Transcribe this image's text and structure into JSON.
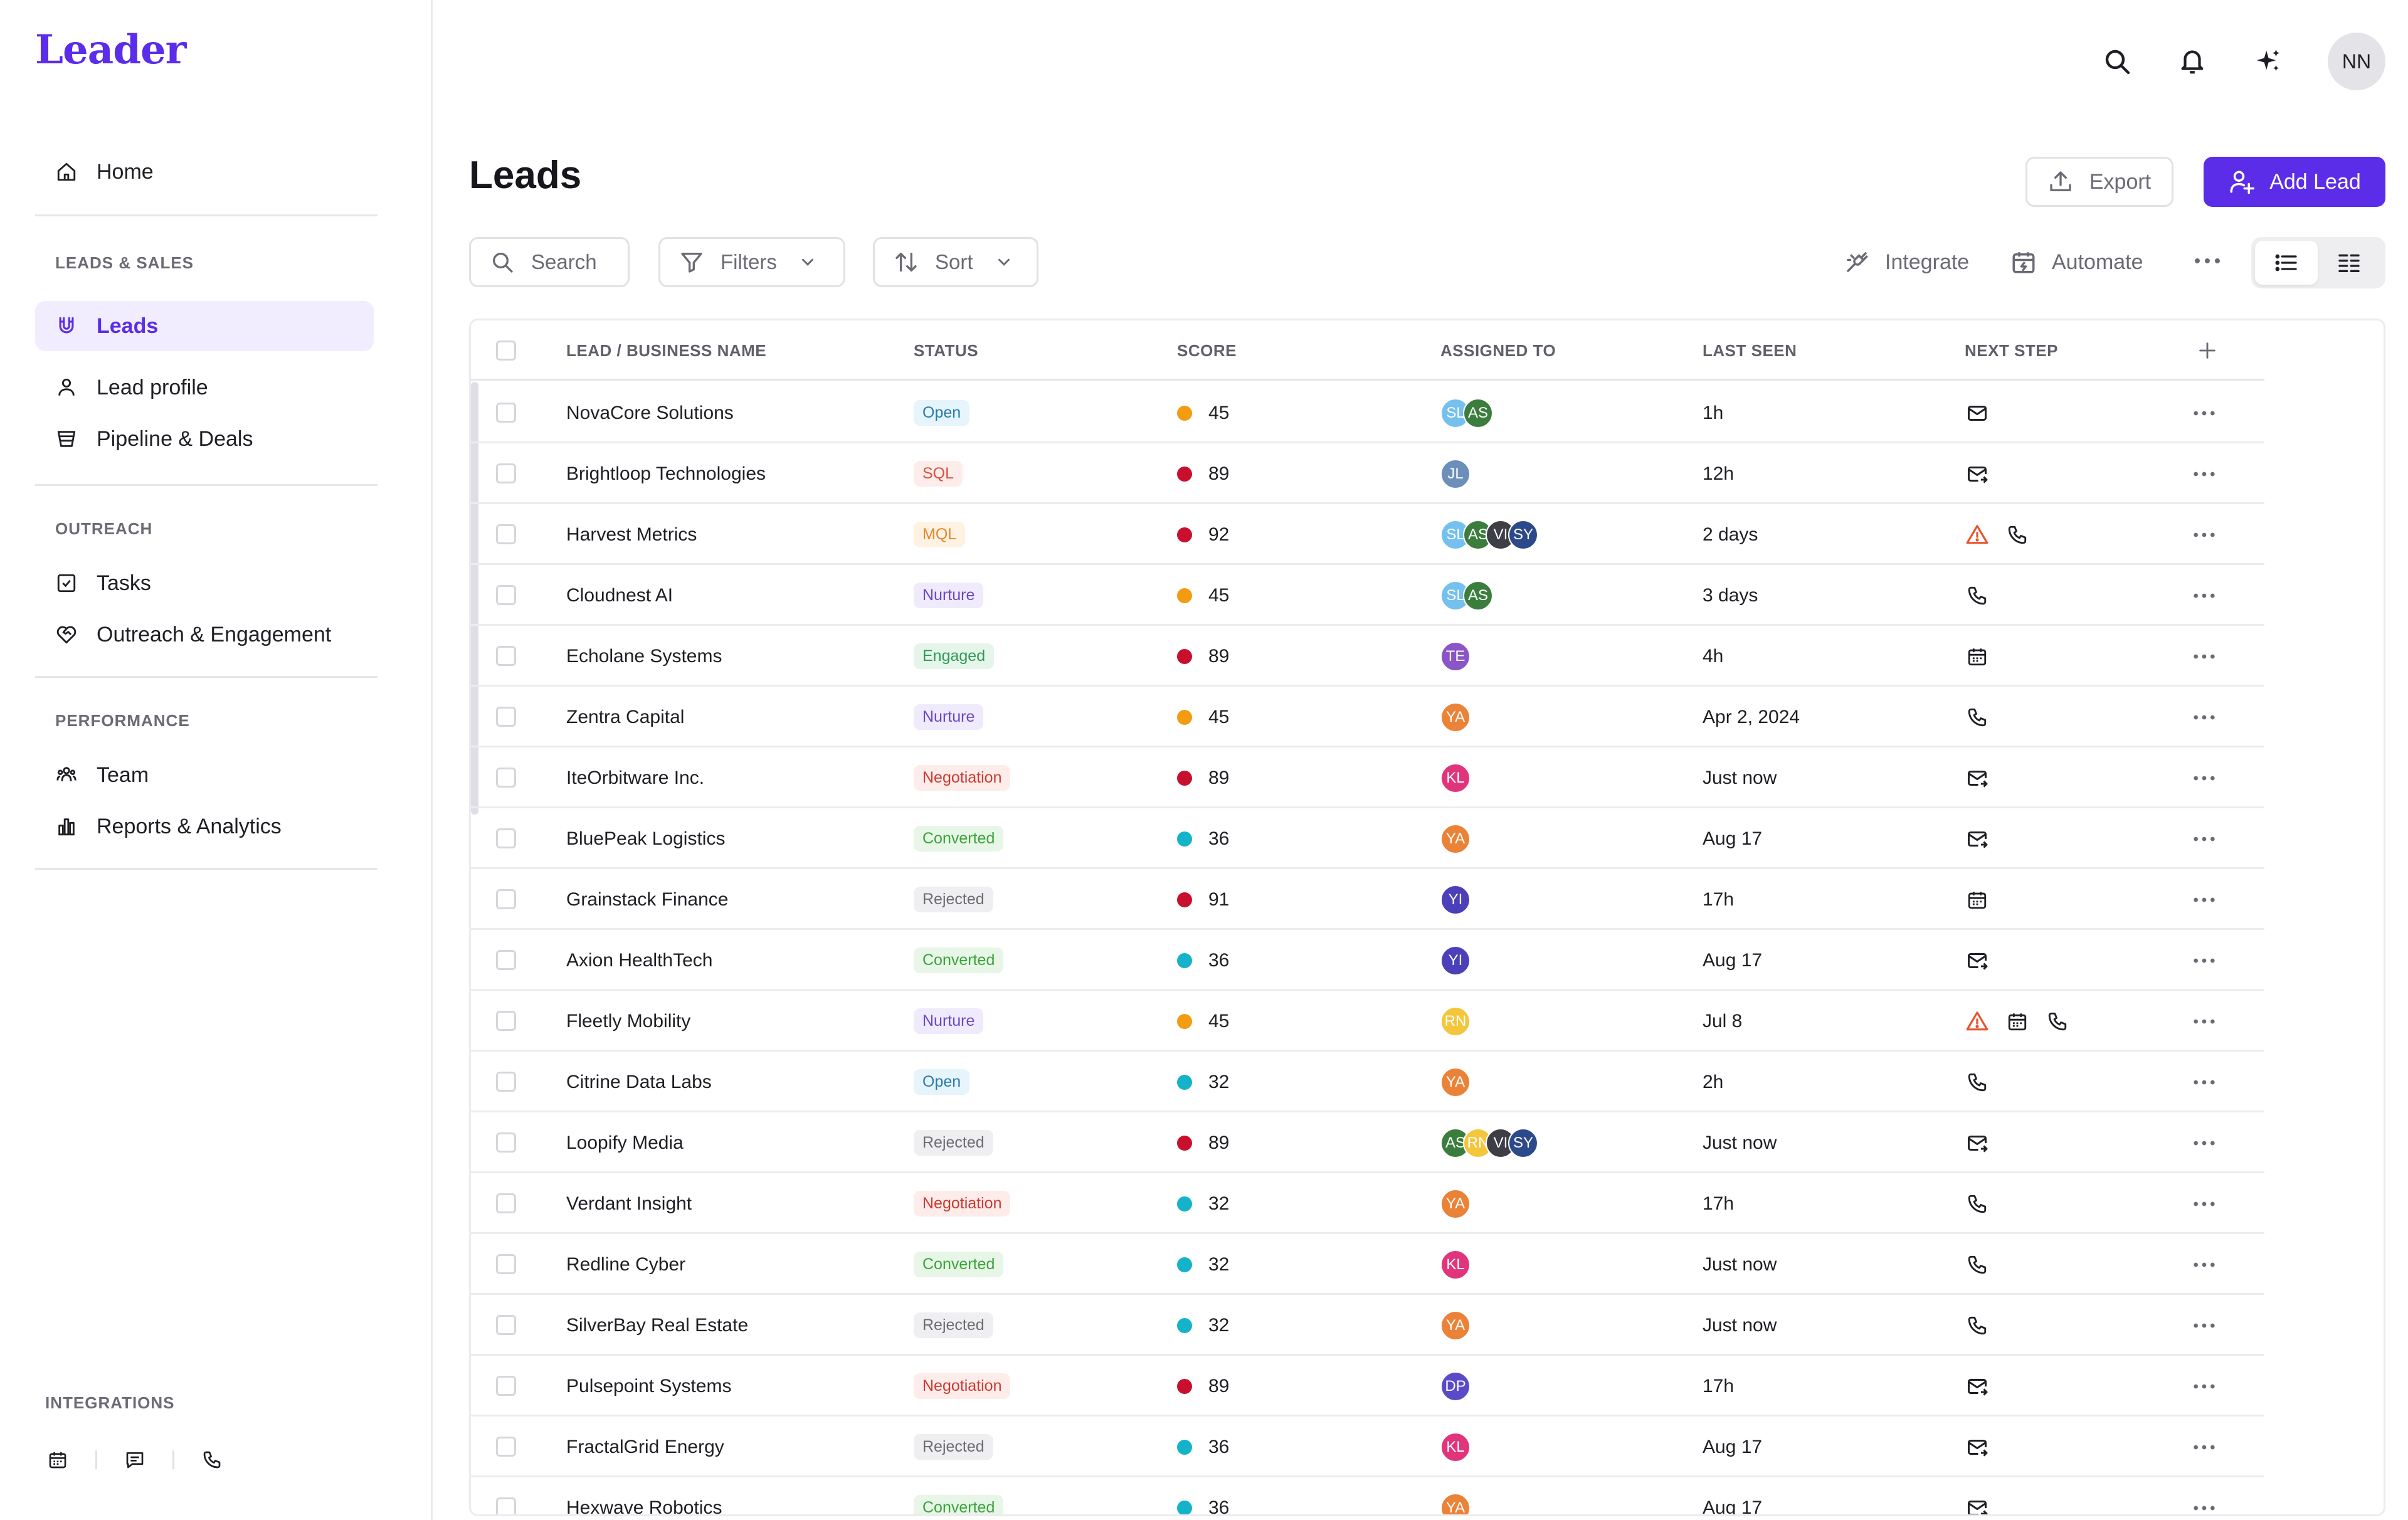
{
  "app": {
    "logo": "Leader"
  },
  "sidebar": {
    "home": "Home",
    "sections": [
      {
        "label": "LEADS & SALES",
        "items": [
          "Leads",
          "Lead profile",
          "Pipeline & Deals"
        ]
      },
      {
        "label": "OUTREACH",
        "items": [
          "Tasks",
          "Outreach & Engagement"
        ]
      },
      {
        "label": "PERFORMANCE",
        "items": [
          "Team",
          "Reports & Analytics"
        ]
      }
    ],
    "active_item": "Leads",
    "integrations_label": "INTEGRATIONS",
    "integration_icons": [
      "calendar-icon",
      "chat-icon",
      "phone-icon"
    ]
  },
  "header": {
    "icons": [
      "search-icon",
      "bell-icon",
      "sparkle-icon"
    ],
    "user_initials": "NN"
  },
  "page": {
    "title": "Leads",
    "export_label": "Export",
    "add_label": "Add Lead"
  },
  "toolbar": {
    "search_placeholder": "Search",
    "filters_label": "Filters",
    "sort_label": "Sort",
    "integrate_label": "Integrate",
    "automate_label": "Automate",
    "view_mode": "list"
  },
  "table": {
    "columns": [
      "LEAD / BUSINESS NAME",
      "STATUS",
      "SCORE",
      "ASSIGNED TO",
      "LAST SEEN",
      "NEXT STEP"
    ],
    "rows": [
      {
        "name": "NovaCore Solutions",
        "status": "Open",
        "score": "45",
        "assigned": [
          "SL",
          "AS"
        ],
        "last_seen": "1h",
        "next": [
          "mail"
        ]
      },
      {
        "name": "Brightloop Technologies",
        "status": "SQL",
        "score": "89",
        "assigned": [
          "JL"
        ],
        "last_seen": "12h",
        "next": [
          "mail-send"
        ]
      },
      {
        "name": "Harvest Metrics",
        "status": "MQL",
        "score": "92",
        "assigned": [
          "SL",
          "AS",
          "VI",
          "SY"
        ],
        "last_seen": "2 days",
        "next": [
          "alert",
          "phone"
        ]
      },
      {
        "name": "Cloudnest AI",
        "status": "Nurture",
        "score": "45",
        "assigned": [
          "SL",
          "AS"
        ],
        "last_seen": "3 days",
        "next": [
          "phone"
        ]
      },
      {
        "name": "Echolane Systems",
        "status": "Engaged",
        "score": "89",
        "assigned": [
          "TE"
        ],
        "last_seen": "4h",
        "next": [
          "calendar"
        ]
      },
      {
        "name": "Zentra Capital",
        "status": "Nurture",
        "score": "45",
        "assigned": [
          "YA"
        ],
        "last_seen": "Apr 2, 2024",
        "next": [
          "phone"
        ]
      },
      {
        "name": "IteOrbitware Inc.",
        "status": "Negotiation",
        "score": "89",
        "assigned": [
          "KL"
        ],
        "last_seen": "Just now",
        "next": [
          "mail-send"
        ]
      },
      {
        "name": "BluePeak Logistics",
        "status": "Converted",
        "score": "36",
        "assigned": [
          "YA"
        ],
        "last_seen": "Aug 17",
        "next": [
          "mail-send"
        ]
      },
      {
        "name": "Grainstack Finance",
        "status": "Rejected",
        "score": "91",
        "assigned": [
          "YI"
        ],
        "last_seen": "17h",
        "next": [
          "calendar"
        ]
      },
      {
        "name": "Axion HealthTech",
        "status": "Converted",
        "score": "36",
        "assigned": [
          "YI"
        ],
        "last_seen": "Aug 17",
        "next": [
          "mail-send"
        ]
      },
      {
        "name": "Fleetly Mobility",
        "status": "Nurture",
        "score": "45",
        "assigned": [
          "RN"
        ],
        "last_seen": "Jul 8",
        "next": [
          "alert",
          "calendar",
          "phone"
        ]
      },
      {
        "name": "Citrine Data Labs",
        "status": "Open",
        "score": "32",
        "assigned": [
          "YA"
        ],
        "last_seen": "2h",
        "next": [
          "phone"
        ]
      },
      {
        "name": "Loopify Media",
        "status": "Rejected",
        "score": "89",
        "assigned": [
          "AS",
          "RN",
          "VI",
          "SY"
        ],
        "last_seen": "Just now",
        "next": [
          "mail-send"
        ]
      },
      {
        "name": "Verdant Insight",
        "status": "Negotiation",
        "score": "32",
        "assigned": [
          "YA"
        ],
        "last_seen": "17h",
        "next": [
          "phone"
        ]
      },
      {
        "name": "Redline Cyber",
        "status": "Converted",
        "score": "32",
        "assigned": [
          "KL"
        ],
        "last_seen": "Just now",
        "next": [
          "phone"
        ]
      },
      {
        "name": "SilverBay Real Estate",
        "status": "Rejected",
        "score": "32",
        "assigned": [
          "YA"
        ],
        "last_seen": "Just now",
        "next": [
          "phone"
        ]
      },
      {
        "name": "Pulsepoint Systems",
        "status": "Negotiation",
        "score": "89",
        "assigned": [
          "DP"
        ],
        "last_seen": "17h",
        "next": [
          "mail-send"
        ]
      },
      {
        "name": "FractalGrid Energy",
        "status": "Rejected",
        "score": "36",
        "assigned": [
          "KL"
        ],
        "last_seen": "Aug 17",
        "next": [
          "mail-send"
        ]
      },
      {
        "name": "Hexwave Robotics",
        "status": "Converted",
        "score": "36",
        "assigned": [
          "YA"
        ],
        "last_seen": "Aug 17",
        "next": [
          "mail-send"
        ]
      }
    ]
  },
  "colors": {
    "accent": "#5b2de8",
    "status": {
      "Open": {
        "bg": "#e6f4fb",
        "fg": "#2a7ca8"
      },
      "SQL": {
        "bg": "#fdecea",
        "fg": "#d4553f"
      },
      "MQL": {
        "bg": "#fff2e3",
        "fg": "#e08a2c"
      },
      "Nurture": {
        "bg": "#efeafc",
        "fg": "#6a48c4"
      },
      "Engaged": {
        "bg": "#e5f5ea",
        "fg": "#2f9a55"
      },
      "Negotiation": {
        "bg": "#fdecea",
        "fg": "#cc3a32"
      },
      "Converted": {
        "bg": "#e7f6e6",
        "fg": "#3ba33a"
      },
      "Rejected": {
        "bg": "#efeff1",
        "fg": "#6c6c74"
      }
    },
    "score_dot": {
      "high": "#c8102e",
      "mid": "#f39c12",
      "low": "#14b3c9"
    },
    "avatars": {
      "SL": "#74c0ef",
      "AS": "#3a7d3c",
      "JL": "#6b8fb8",
      "VI": "#3e3e46",
      "SY": "#2c4a8a",
      "TE": "#8a55c7",
      "YA": "#ea8238",
      "KL": "#e0357a",
      "YI": "#4c3fba",
      "RN": "#f4c63b",
      "DP": "#5a4ac9"
    }
  }
}
